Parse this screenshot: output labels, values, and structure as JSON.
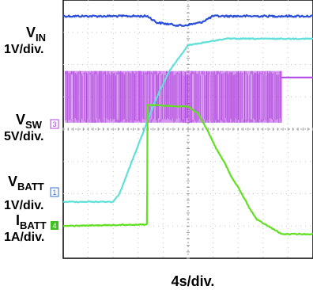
{
  "chart_data": {
    "type": "line",
    "title": "",
    "xlabel": "4s/div.",
    "grid": true,
    "x_range": [
      0,
      40
    ],
    "divisions": {
      "horizontal": 10,
      "vertical": 8
    },
    "series": [
      {
        "name": "VIN",
        "scale": "1V/div.",
        "color": "#2a4ed8",
        "points": [
          [
            0,
            7.5
          ],
          [
            13.5,
            7.5
          ],
          [
            15,
            7.3
          ],
          [
            19,
            7.2
          ],
          [
            22,
            7.3
          ],
          [
            24,
            7.5
          ],
          [
            40,
            7.5
          ]
        ]
      },
      {
        "name": "VSW",
        "scale": "5V/div.",
        "channel_marker": "3",
        "color": "#b040e0",
        "band": {
          "x_start": 0.3,
          "x_end": 35,
          "top": 5.8,
          "bottom": 4.2
        },
        "after_level": 5.6
      },
      {
        "name": "VBATT",
        "scale": "1V/div.",
        "channel_marker": "1",
        "color": "#5fe0d8",
        "points": [
          [
            0,
            1.75
          ],
          [
            8,
            1.75
          ],
          [
            9,
            2.0
          ],
          [
            15,
            5.0
          ],
          [
            17,
            5.8
          ],
          [
            20,
            6.6
          ],
          [
            26,
            6.8
          ],
          [
            40,
            6.8
          ]
        ]
      },
      {
        "name": "IBATT",
        "scale": "1A/div.",
        "channel_marker": "4",
        "color": "#60e020",
        "points": [
          [
            0,
            1.0
          ],
          [
            13.4,
            1.05
          ],
          [
            13.45,
            2.25
          ],
          [
            13.5,
            4.75
          ],
          [
            17,
            4.72
          ],
          [
            20,
            4.7
          ],
          [
            21.5,
            4.5
          ],
          [
            23,
            4.0
          ],
          [
            24.5,
            3.4
          ],
          [
            26,
            2.9
          ],
          [
            27,
            2.5
          ],
          [
            28,
            2.2
          ],
          [
            29,
            1.85
          ],
          [
            30,
            1.5
          ],
          [
            31,
            1.2
          ],
          [
            35,
            0.75
          ],
          [
            40,
            0.75
          ]
        ]
      }
    ]
  },
  "labels": {
    "vin_main": "V",
    "vin_sub": "IN",
    "vin_scale": "1V/div.",
    "vsw_main": "V",
    "vsw_sub": "SW",
    "vsw_scale": "5V/div.",
    "vbatt_main": "V",
    "vbatt_sub": "BATT",
    "vbatt_scale": "1V/div.",
    "ibatt_main": "I",
    "ibatt_sub": "BATT",
    "ibatt_scale": "1A/div.",
    "ch_vsw": "3",
    "ch_vbatt": "1",
    "ch_ibatt": "4",
    "xscale": "4s/div."
  }
}
